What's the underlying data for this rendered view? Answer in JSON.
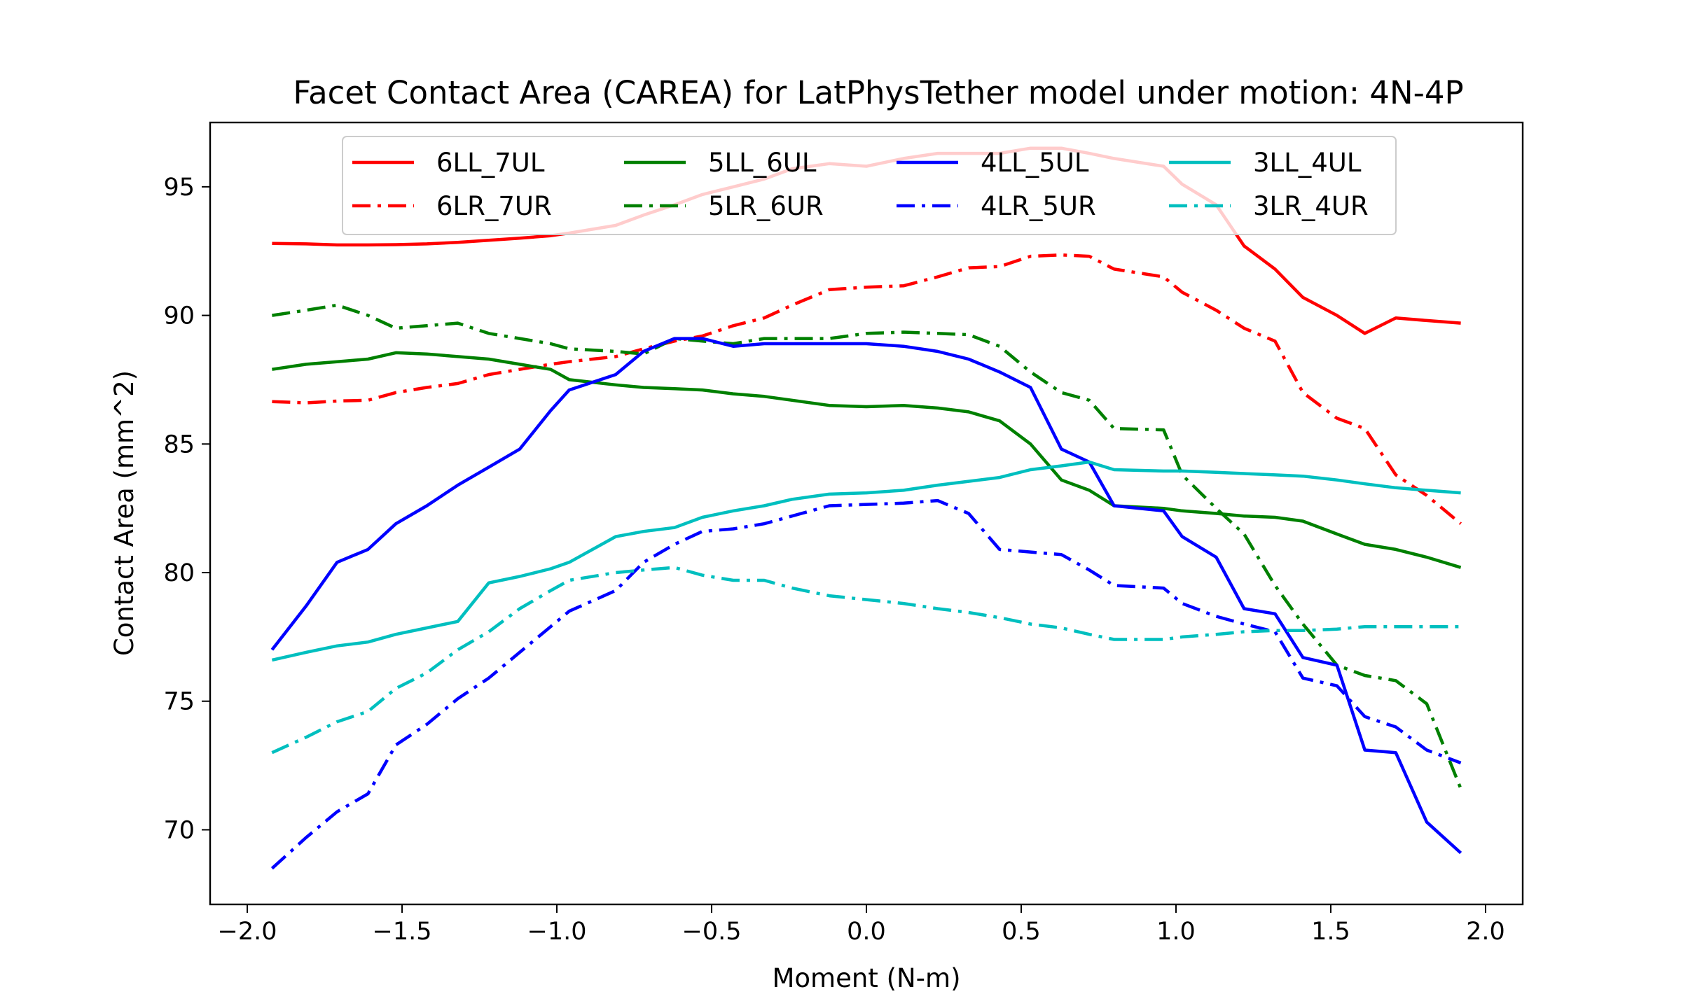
{
  "chart_data": {
    "type": "line",
    "title": "Facet Contact Area (CAREA) for LatPhysTether model under motion: 4N-4P",
    "xlabel": "Moment (N-m)",
    "ylabel": "Contact Area (mm^2)",
    "xlim": [
      -2.12,
      2.12
    ],
    "ylim": [
      67.1,
      97.5
    ],
    "xticks": [
      -2.0,
      -1.5,
      -1.0,
      -0.5,
      0.0,
      0.5,
      1.0,
      1.5,
      2.0
    ],
    "xtick_labels": [
      "−2.0",
      "−1.5",
      "−1.0",
      "−0.5",
      "0.0",
      "0.5",
      "1.0",
      "1.5",
      "2.0"
    ],
    "yticks": [
      70,
      75,
      80,
      85,
      90,
      95
    ],
    "ytick_labels": [
      "70",
      "75",
      "80",
      "85",
      "90",
      "95"
    ],
    "grid": false,
    "legend_position": "upper center",
    "x": [
      -1.92,
      -1.81,
      -1.71,
      -1.61,
      -1.52,
      -1.42,
      -1.32,
      -1.22,
      -1.12,
      -1.02,
      -0.96,
      -0.81,
      -0.72,
      -0.62,
      -0.53,
      -0.43,
      -0.33,
      -0.24,
      -0.12,
      0.0,
      0.12,
      0.23,
      0.33,
      0.43,
      0.53,
      0.63,
      0.72,
      0.8,
      0.96,
      1.02,
      1.13,
      1.22,
      1.32,
      1.41,
      1.52,
      1.61,
      1.71,
      1.81,
      1.92
    ],
    "series": [
      {
        "name": "6LL_7UL",
        "color": "#ff0000",
        "dash": "solid",
        "values": [
          92.8,
          92.78,
          92.74,
          92.74,
          92.75,
          92.78,
          92.84,
          92.92,
          93.0,
          93.1,
          93.2,
          93.5,
          93.9,
          94.3,
          94.7,
          95.0,
          95.3,
          95.7,
          95.9,
          95.8,
          96.1,
          96.3,
          96.3,
          96.3,
          96.5,
          96.5,
          96.3,
          96.1,
          95.8,
          95.1,
          94.3,
          92.7,
          91.8,
          90.7,
          90.0,
          89.3,
          89.9,
          89.8,
          89.7
        ]
      },
      {
        "name": "6LR_7UR",
        "color": "#ff0000",
        "dash": "dashdot",
        "values": [
          86.65,
          86.6,
          86.67,
          86.7,
          87.0,
          87.2,
          87.35,
          87.7,
          87.9,
          88.1,
          88.2,
          88.4,
          88.7,
          89.0,
          89.2,
          89.6,
          89.9,
          90.4,
          91.0,
          91.1,
          91.15,
          91.5,
          91.85,
          91.9,
          92.3,
          92.35,
          92.3,
          91.8,
          91.5,
          90.9,
          90.2,
          89.5,
          89.0,
          87.0,
          86.0,
          85.6,
          83.8,
          83.0,
          81.9
        ]
      },
      {
        "name": "5LL_6UL",
        "color": "#008000",
        "dash": "solid",
        "values": [
          87.9,
          88.1,
          88.2,
          88.3,
          88.55,
          88.5,
          88.4,
          88.3,
          88.1,
          87.9,
          87.5,
          87.3,
          87.2,
          87.15,
          87.1,
          86.95,
          86.85,
          86.7,
          86.5,
          86.45,
          86.5,
          86.4,
          86.25,
          85.9,
          85.0,
          83.6,
          83.2,
          82.6,
          82.5,
          82.4,
          82.3,
          82.2,
          82.15,
          82.0,
          81.5,
          81.1,
          80.9,
          80.6,
          80.2
        ]
      },
      {
        "name": "5LR_6UR",
        "color": "#008000",
        "dash": "dashdot",
        "values": [
          90.0,
          90.2,
          90.4,
          90.0,
          89.5,
          89.6,
          89.7,
          89.3,
          89.1,
          88.9,
          88.7,
          88.6,
          88.5,
          89.1,
          89.0,
          88.9,
          89.1,
          89.1,
          89.1,
          89.3,
          89.35,
          89.3,
          89.25,
          88.8,
          87.8,
          87.0,
          86.7,
          85.6,
          85.55,
          83.8,
          82.5,
          81.5,
          79.5,
          78.0,
          76.4,
          76.0,
          75.8,
          74.9,
          71.6
        ]
      },
      {
        "name": "4LL_5UL",
        "color": "#0000ff",
        "dash": "solid",
        "values": [
          77.0,
          78.7,
          80.4,
          80.9,
          81.9,
          82.6,
          83.4,
          84.1,
          84.8,
          86.3,
          87.1,
          87.7,
          88.6,
          89.1,
          89.1,
          88.8,
          88.9,
          88.9,
          88.9,
          88.9,
          88.8,
          88.6,
          88.3,
          87.8,
          87.2,
          84.8,
          84.3,
          82.6,
          82.4,
          81.4,
          80.6,
          78.6,
          78.4,
          76.7,
          76.4,
          73.1,
          73.0,
          70.3,
          69.1
        ]
      },
      {
        "name": "4LR_5UR",
        "color": "#0000ff",
        "dash": "dashdot",
        "values": [
          68.5,
          69.7,
          70.7,
          71.4,
          73.3,
          74.1,
          75.1,
          75.9,
          76.9,
          77.9,
          78.5,
          79.3,
          80.4,
          81.1,
          81.6,
          81.7,
          81.9,
          82.2,
          82.6,
          82.65,
          82.7,
          82.8,
          82.3,
          80.9,
          80.8,
          80.7,
          80.1,
          79.5,
          79.4,
          78.8,
          78.3,
          78.0,
          77.7,
          75.9,
          75.6,
          74.4,
          74.0,
          73.1,
          72.6
        ]
      },
      {
        "name": "3LL_4UL",
        "color": "#00bfbf",
        "dash": "solid",
        "values": [
          76.6,
          76.9,
          77.15,
          77.3,
          77.6,
          77.85,
          78.1,
          79.6,
          79.85,
          80.15,
          80.4,
          81.4,
          81.6,
          81.75,
          82.15,
          82.4,
          82.6,
          82.85,
          83.05,
          83.1,
          83.2,
          83.4,
          83.55,
          83.7,
          84.0,
          84.15,
          84.3,
          84.0,
          83.95,
          83.95,
          83.9,
          83.85,
          83.8,
          83.75,
          83.6,
          83.45,
          83.3,
          83.2,
          83.1
        ]
      },
      {
        "name": "3LR_4UR",
        "color": "#00bfbf",
        "dash": "dashdot",
        "values": [
          73.0,
          73.6,
          74.2,
          74.6,
          75.5,
          76.1,
          77.0,
          77.7,
          78.6,
          79.3,
          79.7,
          80.0,
          80.1,
          80.2,
          79.9,
          79.7,
          79.7,
          79.4,
          79.1,
          78.95,
          78.8,
          78.6,
          78.45,
          78.25,
          78.0,
          77.85,
          77.6,
          77.4,
          77.4,
          77.5,
          77.6,
          77.7,
          77.75,
          77.75,
          77.8,
          77.9,
          77.9,
          77.9,
          77.9
        ]
      }
    ]
  }
}
